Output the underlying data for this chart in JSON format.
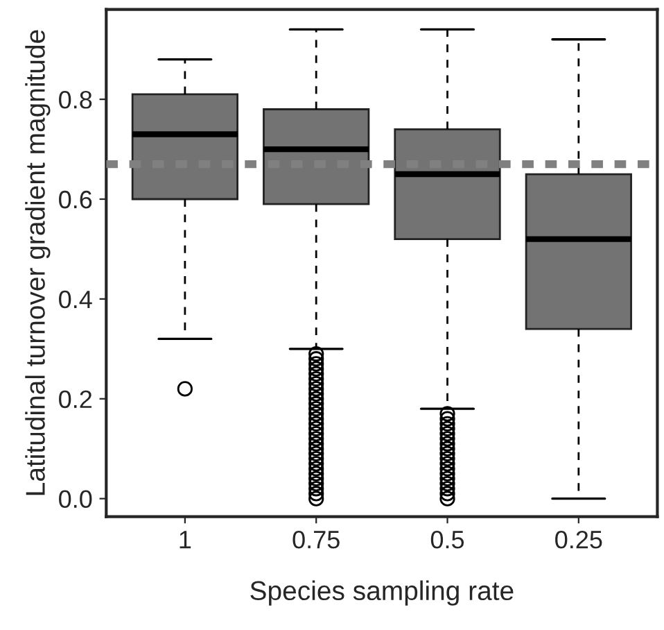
{
  "chart_data": {
    "type": "box",
    "xlabel": "Species sampling rate",
    "ylabel": "Latitudinal turnover gradient magnitude",
    "categories": [
      "1",
      "0.75",
      "0.5",
      "0.25"
    ],
    "color": "#737373",
    "boxes": [
      {
        "low": 0.32,
        "q1": 0.6,
        "median": 0.73,
        "q3": 0.81,
        "high": 0.88,
        "outliers": [
          0.22
        ]
      },
      {
        "low": 0.3,
        "q1": 0.59,
        "median": 0.7,
        "q3": 0.78,
        "high": 0.94,
        "outliers": [
          0.0,
          0.01,
          0.02,
          0.03,
          0.04,
          0.05,
          0.06,
          0.07,
          0.08,
          0.09,
          0.1,
          0.11,
          0.12,
          0.13,
          0.14,
          0.15,
          0.16,
          0.17,
          0.18,
          0.19,
          0.2,
          0.21,
          0.22,
          0.23,
          0.24,
          0.25,
          0.26,
          0.27,
          0.28,
          0.29
        ]
      },
      {
        "low": 0.18,
        "q1": 0.52,
        "median": 0.65,
        "q3": 0.74,
        "high": 0.94,
        "outliers": [
          0.0,
          0.01,
          0.02,
          0.03,
          0.04,
          0.05,
          0.06,
          0.07,
          0.08,
          0.09,
          0.1,
          0.11,
          0.12,
          0.13,
          0.14,
          0.15,
          0.16,
          0.17
        ]
      },
      {
        "low": 0.0,
        "q1": 0.34,
        "median": 0.52,
        "q3": 0.65,
        "high": 0.92
      }
    ],
    "ylim": [
      -0.036,
      0.98
    ],
    "yticks": [
      {
        "value": 0,
        "label": "0.0"
      },
      0.2,
      0.4,
      0.6,
      0.8
    ],
    "ref_lines": [
      {
        "axis": "y",
        "value": 0.67,
        "color": "#808080",
        "line_style": "dotted"
      }
    ],
    "grid": false
  }
}
